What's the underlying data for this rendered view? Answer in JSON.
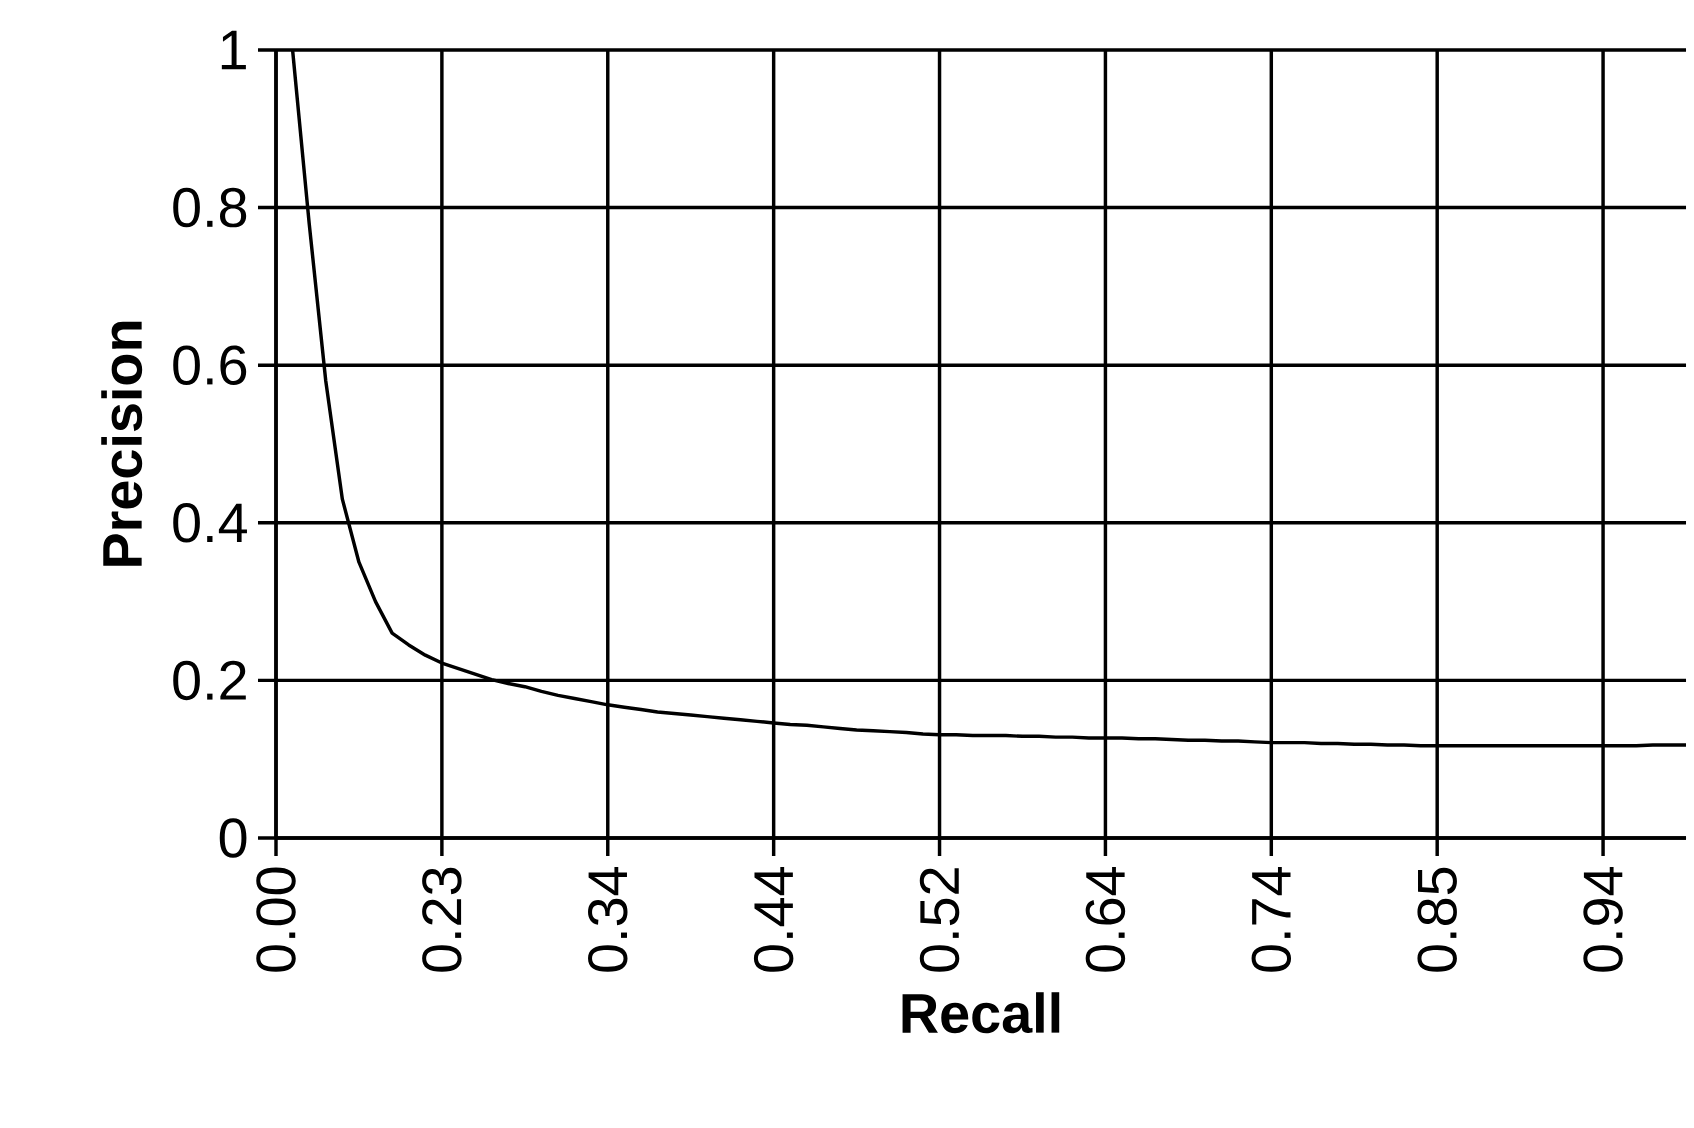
{
  "chart_data": {
    "type": "line",
    "xlabel": "Recall",
    "ylabel": "Precision",
    "categories": [
      "0.00",
      null,
      null,
      null,
      null,
      null,
      null,
      null,
      null,
      null,
      "0.23",
      null,
      null,
      null,
      null,
      null,
      null,
      null,
      null,
      null,
      "0.34",
      null,
      null,
      null,
      null,
      null,
      null,
      null,
      null,
      null,
      "0.44",
      null,
      null,
      null,
      null,
      null,
      null,
      null,
      null,
      null,
      "0.52",
      null,
      null,
      null,
      null,
      null,
      null,
      null,
      null,
      null,
      "0.64",
      null,
      null,
      null,
      null,
      null,
      null,
      null,
      null,
      null,
      "0.74",
      null,
      null,
      null,
      null,
      null,
      null,
      null,
      null,
      null,
      "0.85",
      null,
      null,
      null,
      null,
      null,
      null,
      null,
      null,
      null,
      "0.94",
      null,
      null,
      null,
      null,
      null
    ],
    "series": [
      {
        "color": "#000000",
        "values": [
          null,
          1.0,
          0.78,
          0.58,
          0.43,
          0.35,
          0.3,
          0.26,
          0.245,
          0.232,
          0.222,
          0.215,
          0.208,
          0.201,
          0.196,
          0.192,
          0.186,
          0.181,
          0.177,
          0.173,
          0.169,
          0.166,
          0.163,
          0.16,
          0.158,
          0.156,
          0.154,
          0.152,
          0.15,
          0.148,
          0.146,
          0.144,
          0.143,
          0.141,
          0.139,
          0.137,
          0.136,
          0.135,
          0.134,
          0.132,
          0.131,
          0.131,
          0.13,
          0.13,
          0.13,
          0.129,
          0.129,
          0.128,
          0.128,
          0.127,
          0.127,
          0.127,
          0.126,
          0.126,
          0.125,
          0.124,
          0.124,
          0.123,
          0.123,
          0.122,
          0.121,
          0.121,
          0.121,
          0.12,
          0.12,
          0.119,
          0.119,
          0.118,
          0.118,
          0.117,
          0.117,
          0.117,
          0.117,
          0.117,
          0.117,
          0.117,
          0.117,
          0.117,
          0.117,
          0.117,
          0.117,
          0.117,
          0.117,
          0.118,
          0.118,
          0.118
        ]
      }
    ],
    "ylim": [
      0,
      1
    ],
    "yticks": [
      0,
      0.2,
      0.4,
      0.6,
      0.8,
      1
    ],
    "grid": true
  }
}
